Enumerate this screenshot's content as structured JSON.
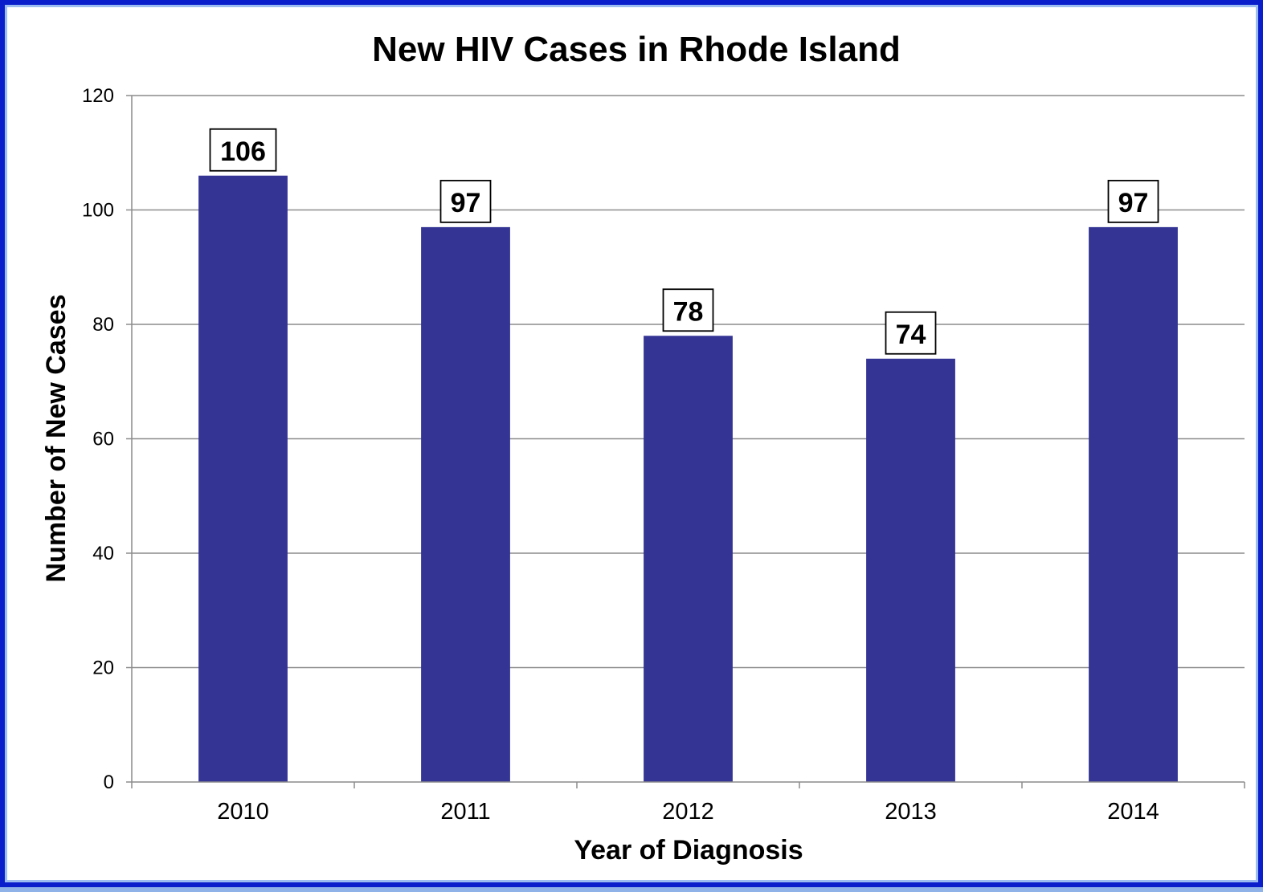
{
  "colors": {
    "bar": "#343495",
    "gridline": "#8c8c8c",
    "axis": "#8c8c8c",
    "frame_border": "#0a1ecc",
    "frame_outer": "#8fb3e8"
  },
  "chart_data": {
    "type": "bar",
    "title": "New HIV Cases in Rhode Island",
    "xlabel": "Year of Diagnosis",
    "ylabel": "Number of New Cases",
    "categories": [
      "2010",
      "2011",
      "2012",
      "2013",
      "2014"
    ],
    "values": [
      106,
      97,
      78,
      74,
      97
    ],
    "ylim": [
      0,
      120
    ],
    "yticks": [
      0,
      20,
      40,
      60,
      80,
      100,
      120
    ],
    "grid": true,
    "legend": false,
    "data_labels": true
  }
}
